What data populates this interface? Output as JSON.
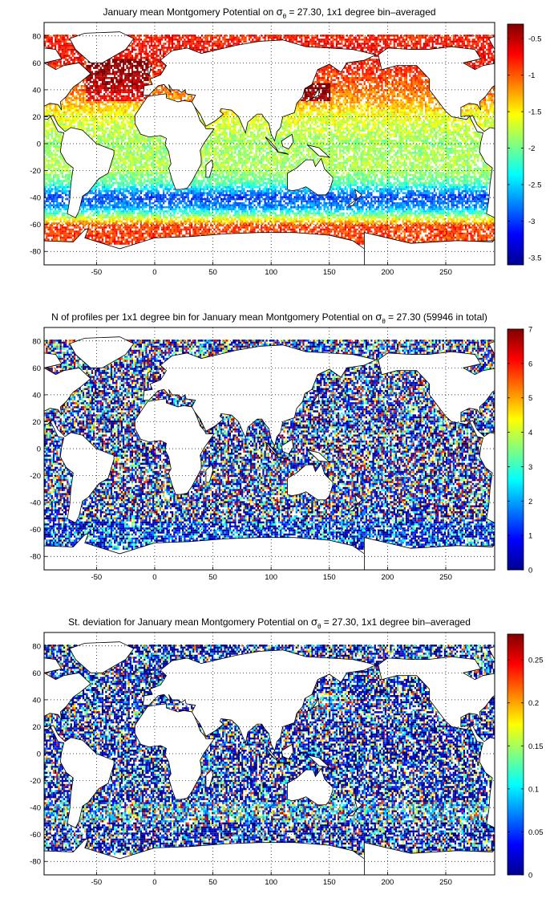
{
  "chart_data": [
    {
      "type": "heatmap",
      "title_parts": {
        "before": "January mean Montgomery Potential on ",
        "symbol": "σ",
        "subscript": "θ",
        "after": " = 27.30, 1x1 degree bin–averaged"
      },
      "xlabel": "",
      "ylabel": "",
      "xlim": [
        -95,
        292
      ],
      "ylim": [
        -90,
        90
      ],
      "x_ticks": [
        "-50",
        "0",
        "50",
        "100",
        "150",
        "200",
        "250"
      ],
      "y_ticks": [
        "80",
        "60",
        "40",
        "20",
        "0",
        "-20",
        "-40",
        "-60",
        "-80"
      ],
      "grid": "dotted",
      "colorbar": {
        "range": [
          -3.6,
          -0.3
        ],
        "ticks": [
          "-0.5",
          "-1",
          "-1.5",
          "-2",
          "-2.5",
          "-3",
          "-3.5"
        ],
        "colormap": "jet"
      },
      "field_by_latitude": [
        {
          "lat": 85,
          "value": -0.9
        },
        {
          "lat": 70,
          "value": -0.7
        },
        {
          "lat": 55,
          "value": -0.8
        },
        {
          "lat": 40,
          "value": -1.05
        },
        {
          "lat": 30,
          "value": -1.25
        },
        {
          "lat": 20,
          "value": -1.6
        },
        {
          "lat": 0,
          "value": -1.85
        },
        {
          "lat": -20,
          "value": -1.8
        },
        {
          "lat": -30,
          "value": -2.1
        },
        {
          "lat": -40,
          "value": -3.0
        },
        {
          "lat": -48,
          "value": -2.7
        },
        {
          "lat": -55,
          "value": -1.8
        },
        {
          "lat": -62,
          "value": -0.9
        },
        {
          "lat": -70,
          "value": -0.9
        }
      ]
    },
    {
      "type": "heatmap",
      "title_parts": {
        "before": "N of profiles per 1x1 degree bin for January mean Montgomery Potential on ",
        "symbol": "σ",
        "subscript": "θ",
        "after": " = 27.30 (59946 in total)"
      },
      "xlabel": "",
      "ylabel": "",
      "xlim": [
        -95,
        292
      ],
      "ylim": [
        -90,
        90
      ],
      "x_ticks": [
        "-50",
        "0",
        "50",
        "100",
        "150",
        "200",
        "250"
      ],
      "y_ticks": [
        "80",
        "60",
        "40",
        "20",
        "0",
        "-20",
        "-40",
        "-60",
        "-80"
      ],
      "grid": "dotted",
      "colorbar": {
        "range": [
          0,
          7
        ],
        "ticks": [
          "7",
          "6",
          "5",
          "4",
          "3",
          "2",
          "1",
          "0"
        ],
        "colormap": "jet"
      },
      "total_profiles": 59946
    },
    {
      "type": "heatmap",
      "title_parts": {
        "before": "St. deviation for January mean Montgomery Potential on ",
        "symbol": "σ",
        "subscript": "θ",
        "after": " = 27.30, 1x1 degree bin–averaged"
      },
      "xlabel": "",
      "ylabel": "",
      "xlim": [
        -95,
        292
      ],
      "ylim": [
        -90,
        90
      ],
      "x_ticks": [
        "-50",
        "0",
        "50",
        "100",
        "150",
        "200",
        "250"
      ],
      "y_ticks": [
        "80",
        "60",
        "40",
        "20",
        "0",
        "-20",
        "-40",
        "-60",
        "-80"
      ],
      "grid": "dotted",
      "colorbar": {
        "range": [
          0,
          0.28
        ],
        "ticks": [
          "0.25",
          "0.2",
          "0.15",
          "0.1",
          "0.05",
          "0"
        ],
        "colormap": "jet"
      }
    }
  ]
}
